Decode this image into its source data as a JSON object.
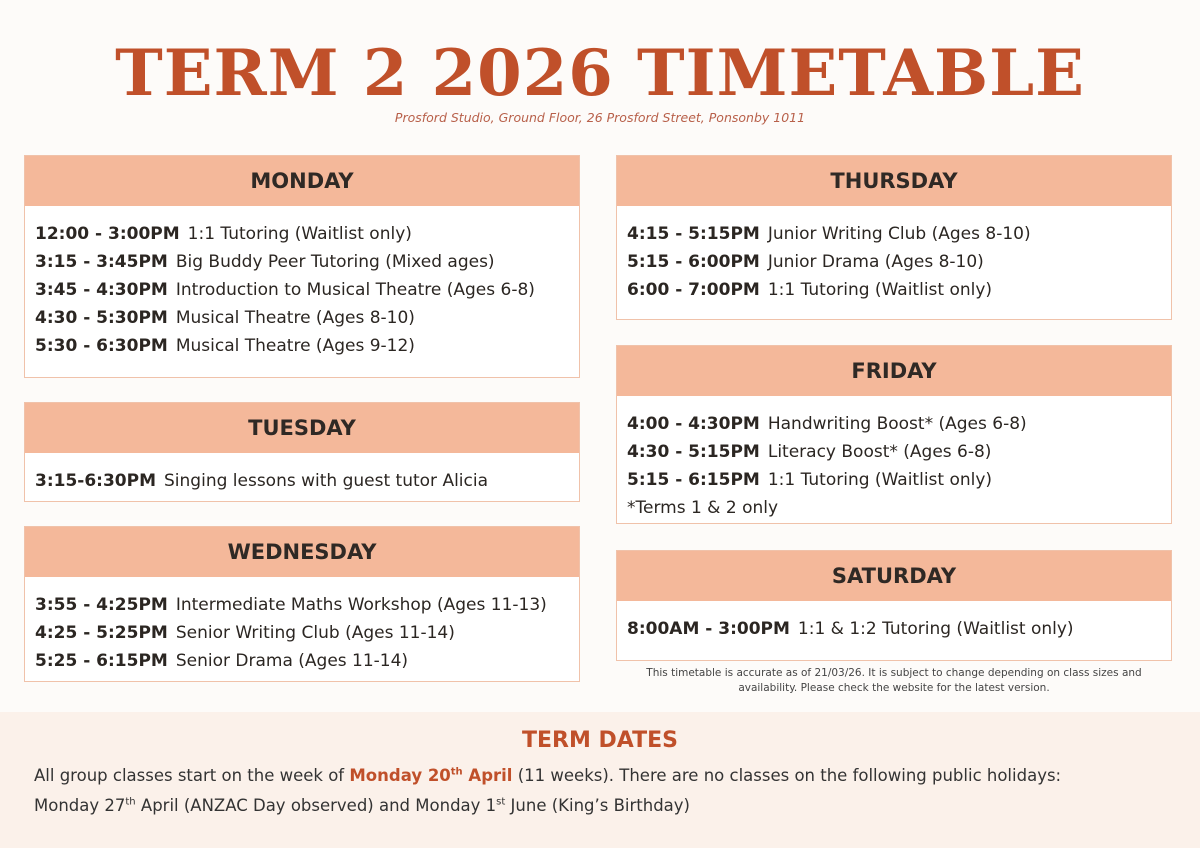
{
  "title": "TERM 2 2026 TIMETABLE",
  "subtitle": "Prosford Studio, Ground Floor, 26 Prosford Street, Ponsonby 1011",
  "colors": {
    "accent": "#c0502a",
    "header": "#f4b89a",
    "band": "#fbf1ea"
  },
  "days": {
    "monday": {
      "name": "MONDAY",
      "rows": [
        {
          "time": "12:00 - 3:00PM",
          "class": "1:1 Tutoring (Waitlist only)"
        },
        {
          "time": "3:15 - 3:45PM",
          "class": "Big Buddy Peer Tutoring (Mixed ages)"
        },
        {
          "time": "3:45 - 4:30PM",
          "class": "Introduction to Musical Theatre (Ages 6-8)"
        },
        {
          "time": "4:30 - 5:30PM",
          "class": "Musical Theatre (Ages 8-10)"
        },
        {
          "time": "5:30 - 6:30PM",
          "class": "Musical Theatre (Ages 9-12)"
        }
      ]
    },
    "tuesday": {
      "name": "TUESDAY",
      "rows": [
        {
          "time": "3:15-6:30PM",
          "class": "Singing lessons with guest tutor Alicia"
        }
      ]
    },
    "wednesday": {
      "name": "WEDNESDAY",
      "rows": [
        {
          "time": "3:55 - 4:25PM",
          "class": "Intermediate Maths Workshop (Ages 11-13)"
        },
        {
          "time": "4:25 - 5:25PM",
          "class": "Senior Writing Club (Ages 11-14)"
        },
        {
          "time": "5:25 - 6:15PM",
          "class": "Senior Drama (Ages 11-14)"
        }
      ]
    },
    "thursday": {
      "name": "THURSDAY",
      "rows": [
        {
          "time": "4:15 - 5:15PM",
          "class": "Junior Writing Club (Ages 8-10)"
        },
        {
          "time": "5:15 - 6:00PM",
          "class": "Junior Drama (Ages 8-10)"
        },
        {
          "time": "6:00 - 7:00PM",
          "class": "1:1 Tutoring (Waitlist only)"
        }
      ]
    },
    "friday": {
      "name": "FRIDAY",
      "rows": [
        {
          "time": "4:00 - 4:30PM",
          "class": "Handwriting Boost* (Ages 6-8)"
        },
        {
          "time": "4:30 - 5:15PM",
          "class": "Literacy Boost* (Ages 6-8)"
        },
        {
          "time": "5:15 - 6:15PM",
          "class": "1:1 Tutoring (Waitlist only)"
        }
      ],
      "footnote": "*Terms 1 & 2 only"
    },
    "saturday": {
      "name": "SATURDAY",
      "rows": [
        {
          "time": "8:00AM - 3:00PM",
          "class": "1:1 & 1:2 Tutoring (Waitlist only)"
        }
      ]
    }
  },
  "note": "This timetable is accurate as of 21/03/26. It is subject to change depending on class sizes and availability. Please check the website for the latest version.",
  "term_dates": {
    "heading": "TERM DATES",
    "line1_a": "All group classes start on the week of ",
    "line1_hl": "Monday 20",
    "line1_hl_sup": "th",
    "line1_hl_b": " April",
    "line1_b": " (11 weeks). There are no classes on the following public holidays:",
    "line2_a": "Monday 27",
    "line2_sup1": "th",
    "line2_b": " April (ANZAC Day observed) and Monday 1",
    "line2_sup2": "st",
    "line2_c": " June (King’s Birthday)"
  }
}
